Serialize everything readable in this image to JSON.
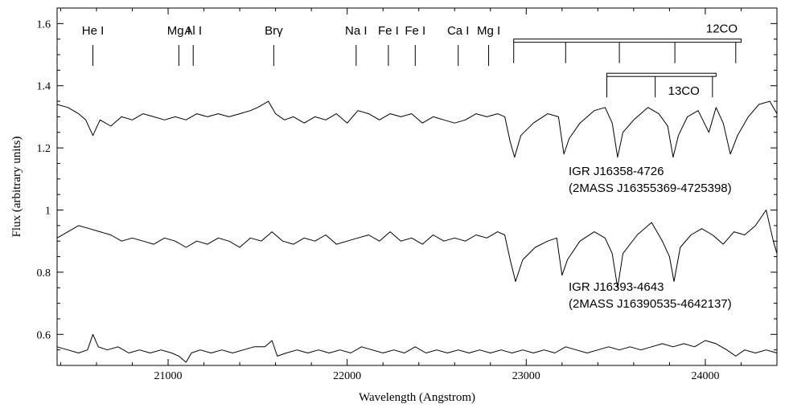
{
  "chart_data": {
    "type": "line",
    "title": "",
    "xlabel": "Wavelength (Angstrom)",
    "ylabel": "Flux (arbitrary units)",
    "xlim": [
      20380,
      24400
    ],
    "ylim": [
      0.5,
      1.65
    ],
    "x_ticks": [
      {
        "value": 21000,
        "label": "21000"
      },
      {
        "value": 22000,
        "label": "22000"
      },
      {
        "value": 23000,
        "label": "23000"
      },
      {
        "value": 24000,
        "label": "24000"
      }
    ],
    "y_ticks": [
      {
        "value": 0.6,
        "label": "0.6"
      },
      {
        "value": 0.8,
        "label": "0.8"
      },
      {
        "value": 1.0,
        "label": "1"
      },
      {
        "value": 1.2,
        "label": "1.2"
      },
      {
        "value": 1.4,
        "label": "1.4"
      },
      {
        "value": 1.6,
        "label": "1.6"
      }
    ],
    "grid": false,
    "line_ids": [
      {
        "label": "He I",
        "x": 20580
      },
      {
        "label": "Mg I",
        "x": 21060
      },
      {
        "label": "Al I",
        "x": 21140
      },
      {
        "label": "Brγ",
        "x": 21590
      },
      {
        "label": "Na I",
        "x": 22050
      },
      {
        "label": "Fe I",
        "x": 22230
      },
      {
        "label": "Fe I",
        "x": 22380
      },
      {
        "label": "Ca I",
        "x": 22620
      },
      {
        "label": "Mg I",
        "x": 22790
      }
    ],
    "bands": [
      {
        "label": "12CO",
        "x_start": 22930,
        "x_end": 24200,
        "marks": [
          22930,
          23220,
          23520,
          23830,
          24170
        ],
        "bar_y": 1.545
      },
      {
        "label": "13CO",
        "x_start": 23450,
        "x_end": 24060,
        "marks": [
          23450,
          23720,
          24040
        ],
        "bar_y": 1.435
      }
    ],
    "series": [
      {
        "name": "",
        "labels": [
          "IGR J16358-4726",
          "(2MASS J16355369-4725398)"
        ],
        "points": [
          [
            20380,
            1.34
          ],
          [
            20440,
            1.33
          ],
          [
            20500,
            1.31
          ],
          [
            20540,
            1.29
          ],
          [
            20580,
            1.24
          ],
          [
            20620,
            1.29
          ],
          [
            20680,
            1.27
          ],
          [
            20740,
            1.3
          ],
          [
            20800,
            1.29
          ],
          [
            20860,
            1.31
          ],
          [
            20920,
            1.3
          ],
          [
            20980,
            1.29
          ],
          [
            21040,
            1.3
          ],
          [
            21100,
            1.29
          ],
          [
            21160,
            1.31
          ],
          [
            21220,
            1.3
          ],
          [
            21280,
            1.31
          ],
          [
            21340,
            1.3
          ],
          [
            21400,
            1.31
          ],
          [
            21460,
            1.32
          ],
          [
            21500,
            1.33
          ],
          [
            21560,
            1.35
          ],
          [
            21600,
            1.31
          ],
          [
            21650,
            1.29
          ],
          [
            21700,
            1.3
          ],
          [
            21760,
            1.28
          ],
          [
            21820,
            1.3
          ],
          [
            21880,
            1.29
          ],
          [
            21940,
            1.31
          ],
          [
            22000,
            1.28
          ],
          [
            22060,
            1.32
          ],
          [
            22120,
            1.31
          ],
          [
            22180,
            1.29
          ],
          [
            22240,
            1.31
          ],
          [
            22300,
            1.3
          ],
          [
            22360,
            1.31
          ],
          [
            22420,
            1.28
          ],
          [
            22480,
            1.3
          ],
          [
            22540,
            1.29
          ],
          [
            22600,
            1.28
          ],
          [
            22660,
            1.29
          ],
          [
            22720,
            1.31
          ],
          [
            22780,
            1.3
          ],
          [
            22840,
            1.31
          ],
          [
            22880,
            1.3
          ],
          [
            22910,
            1.22
          ],
          [
            22935,
            1.17
          ],
          [
            22970,
            1.24
          ],
          [
            23040,
            1.28
          ],
          [
            23120,
            1.31
          ],
          [
            23180,
            1.3
          ],
          [
            23210,
            1.18
          ],
          [
            23240,
            1.23
          ],
          [
            23300,
            1.28
          ],
          [
            23380,
            1.32
          ],
          [
            23440,
            1.33
          ],
          [
            23480,
            1.28
          ],
          [
            23510,
            1.17
          ],
          [
            23540,
            1.25
          ],
          [
            23600,
            1.29
          ],
          [
            23680,
            1.33
          ],
          [
            23740,
            1.31
          ],
          [
            23790,
            1.27
          ],
          [
            23820,
            1.17
          ],
          [
            23850,
            1.24
          ],
          [
            23900,
            1.3
          ],
          [
            23960,
            1.32
          ],
          [
            24020,
            1.25
          ],
          [
            24060,
            1.33
          ],
          [
            24100,
            1.28
          ],
          [
            24140,
            1.18
          ],
          [
            24180,
            1.24
          ],
          [
            24240,
            1.3
          ],
          [
            24300,
            1.34
          ],
          [
            24360,
            1.35
          ],
          [
            24400,
            1.31
          ]
        ]
      },
      {
        "name": "",
        "labels": [
          "IGR J16393-4643",
          "(2MASS J16390535-4642137)"
        ],
        "points": [
          [
            20380,
            0.91
          ],
          [
            20440,
            0.93
          ],
          [
            20500,
            0.95
          ],
          [
            20560,
            0.94
          ],
          [
            20620,
            0.93
          ],
          [
            20680,
            0.92
          ],
          [
            20740,
            0.9
          ],
          [
            20800,
            0.91
          ],
          [
            20860,
            0.9
          ],
          [
            20920,
            0.89
          ],
          [
            20980,
            0.91
          ],
          [
            21040,
            0.9
          ],
          [
            21100,
            0.88
          ],
          [
            21160,
            0.9
          ],
          [
            21220,
            0.89
          ],
          [
            21280,
            0.91
          ],
          [
            21340,
            0.9
          ],
          [
            21400,
            0.88
          ],
          [
            21460,
            0.91
          ],
          [
            21520,
            0.9
          ],
          [
            21580,
            0.93
          ],
          [
            21640,
            0.9
          ],
          [
            21700,
            0.89
          ],
          [
            21760,
            0.91
          ],
          [
            21820,
            0.9
          ],
          [
            21880,
            0.92
          ],
          [
            21940,
            0.89
          ],
          [
            22000,
            0.9
          ],
          [
            22060,
            0.91
          ],
          [
            22120,
            0.92
          ],
          [
            22180,
            0.9
          ],
          [
            22240,
            0.93
          ],
          [
            22300,
            0.9
          ],
          [
            22360,
            0.91
          ],
          [
            22420,
            0.89
          ],
          [
            22480,
            0.92
          ],
          [
            22540,
            0.9
          ],
          [
            22600,
            0.91
          ],
          [
            22660,
            0.9
          ],
          [
            22720,
            0.92
          ],
          [
            22780,
            0.91
          ],
          [
            22840,
            0.93
          ],
          [
            22880,
            0.92
          ],
          [
            22910,
            0.84
          ],
          [
            22940,
            0.77
          ],
          [
            22980,
            0.84
          ],
          [
            23050,
            0.88
          ],
          [
            23120,
            0.9
          ],
          [
            23170,
            0.91
          ],
          [
            23200,
            0.79
          ],
          [
            23230,
            0.84
          ],
          [
            23300,
            0.9
          ],
          [
            23380,
            0.93
          ],
          [
            23440,
            0.91
          ],
          [
            23480,
            0.86
          ],
          [
            23510,
            0.75
          ],
          [
            23540,
            0.86
          ],
          [
            23620,
            0.92
          ],
          [
            23700,
            0.96
          ],
          [
            23760,
            0.9
          ],
          [
            23800,
            0.85
          ],
          [
            23825,
            0.77
          ],
          [
            23860,
            0.88
          ],
          [
            23920,
            0.92
          ],
          [
            23980,
            0.94
          ],
          [
            24040,
            0.92
          ],
          [
            24100,
            0.89
          ],
          [
            24160,
            0.93
          ],
          [
            24220,
            0.92
          ],
          [
            24280,
            0.95
          ],
          [
            24340,
            1.0
          ],
          [
            24380,
            0.9
          ],
          [
            24400,
            0.86
          ]
        ]
      },
      {
        "name": "",
        "labels": [],
        "points": [
          [
            20380,
            0.56
          ],
          [
            20440,
            0.55
          ],
          [
            20500,
            0.54
          ],
          [
            20550,
            0.55
          ],
          [
            20580,
            0.6
          ],
          [
            20610,
            0.56
          ],
          [
            20660,
            0.55
          ],
          [
            20720,
            0.56
          ],
          [
            20780,
            0.54
          ],
          [
            20840,
            0.55
          ],
          [
            20900,
            0.54
          ],
          [
            20960,
            0.55
          ],
          [
            21020,
            0.54
          ],
          [
            21060,
            0.53
          ],
          [
            21100,
            0.51
          ],
          [
            21130,
            0.54
          ],
          [
            21180,
            0.55
          ],
          [
            21240,
            0.54
          ],
          [
            21300,
            0.55
          ],
          [
            21360,
            0.54
          ],
          [
            21420,
            0.55
          ],
          [
            21480,
            0.56
          ],
          [
            21540,
            0.56
          ],
          [
            21580,
            0.58
          ],
          [
            21610,
            0.53
          ],
          [
            21660,
            0.54
          ],
          [
            21720,
            0.55
          ],
          [
            21780,
            0.54
          ],
          [
            21840,
            0.55
          ],
          [
            21900,
            0.54
          ],
          [
            21960,
            0.55
          ],
          [
            22020,
            0.54
          ],
          [
            22080,
            0.56
          ],
          [
            22140,
            0.55
          ],
          [
            22200,
            0.54
          ],
          [
            22260,
            0.55
          ],
          [
            22320,
            0.54
          ],
          [
            22380,
            0.56
          ],
          [
            22440,
            0.54
          ],
          [
            22500,
            0.55
          ],
          [
            22560,
            0.54
          ],
          [
            22620,
            0.55
          ],
          [
            22680,
            0.54
          ],
          [
            22740,
            0.55
          ],
          [
            22800,
            0.54
          ],
          [
            22860,
            0.55
          ],
          [
            22920,
            0.54
          ],
          [
            22980,
            0.55
          ],
          [
            23040,
            0.54
          ],
          [
            23100,
            0.55
          ],
          [
            23160,
            0.54
          ],
          [
            23220,
            0.56
          ],
          [
            23280,
            0.55
          ],
          [
            23340,
            0.54
          ],
          [
            23400,
            0.55
          ],
          [
            23460,
            0.56
          ],
          [
            23520,
            0.55
          ],
          [
            23580,
            0.56
          ],
          [
            23640,
            0.55
          ],
          [
            23700,
            0.56
          ],
          [
            23760,
            0.57
          ],
          [
            23820,
            0.56
          ],
          [
            23880,
            0.57
          ],
          [
            23940,
            0.56
          ],
          [
            24000,
            0.58
          ],
          [
            24060,
            0.57
          ],
          [
            24120,
            0.55
          ],
          [
            24170,
            0.53
          ],
          [
            24220,
            0.55
          ],
          [
            24280,
            0.54
          ],
          [
            24340,
            0.55
          ],
          [
            24400,
            0.54
          ]
        ]
      }
    ]
  }
}
